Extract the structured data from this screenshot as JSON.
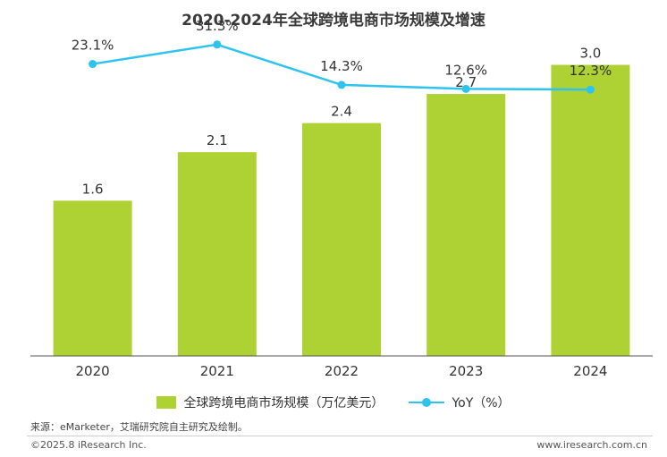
{
  "chart_data": {
    "type": "bar",
    "title": "2020-2024年全球跨境电商市场规模及增速",
    "categories": [
      "2020",
      "2021",
      "2022",
      "2023",
      "2024"
    ],
    "series": [
      {
        "name": "全球跨境电商市场规模（万亿美元）",
        "kind": "bar",
        "values": [
          1.6,
          2.1,
          2.4,
          2.7,
          3.0
        ],
        "labels": [
          "1.6",
          "2.1",
          "2.4",
          "2.7",
          "3.0"
        ]
      },
      {
        "name": "YoY（%）",
        "kind": "line",
        "values": [
          23.1,
          31.3,
          14.3,
          12.6,
          12.3
        ],
        "labels": [
          "23.1%",
          "31.3%",
          "14.3%",
          "12.6%",
          "12.3%"
        ]
      }
    ],
    "ylim": [
      0,
      3.3
    ],
    "y2lim": [
      -100,
      35
    ],
    "grid": false,
    "legend": "bottom"
  },
  "colors": {
    "bar": "#aed133",
    "line": "#2ec3ef"
  },
  "footer": {
    "source": "来源：eMarketer，艾瑞研究院自主研究及绘制。",
    "copyright": "©2025.8 iResearch Inc.",
    "website": "www.iresearch.com.cn"
  }
}
